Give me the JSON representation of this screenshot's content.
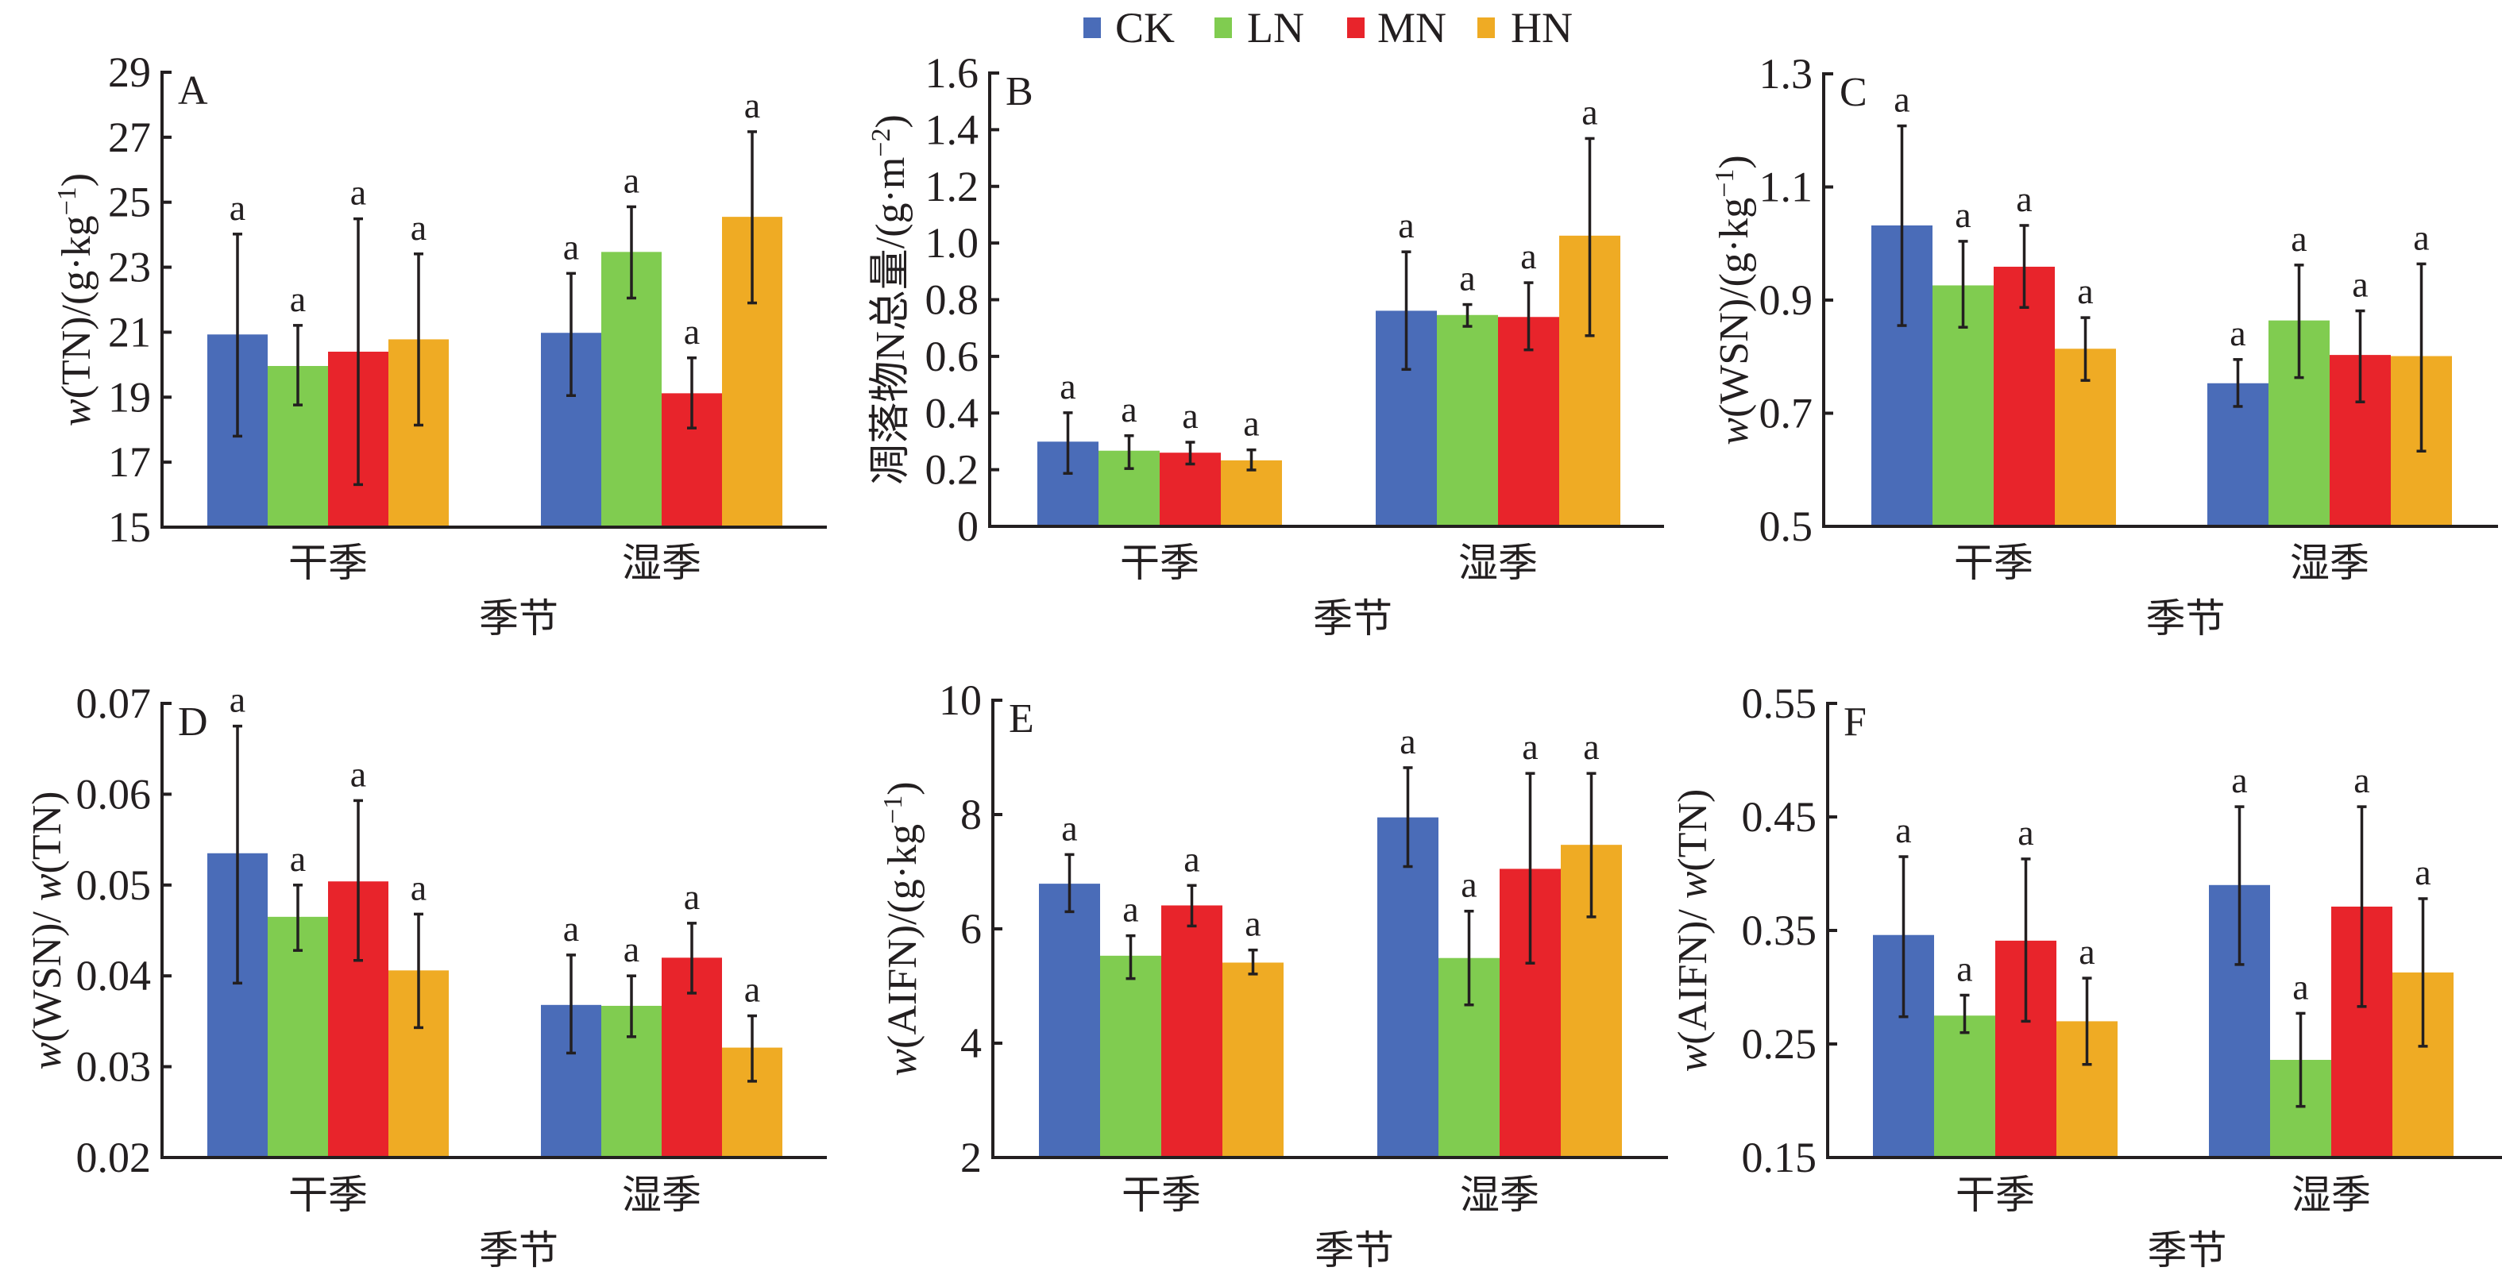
{
  "legend": [
    {
      "key": "CK",
      "label": "CK",
      "color": "#4a6cb8"
    },
    {
      "key": "LN",
      "label": "LN",
      "color": "#80cc50"
    },
    {
      "key": "MN",
      "label": "MN",
      "color": "#e8242b"
    },
    {
      "key": "HN",
      "label": "HN",
      "color": "#efab24"
    }
  ],
  "chart_data": [
    {
      "type": "bar",
      "panel": "A",
      "title": "",
      "ylabel": {
        "italic": "w",
        "text": "(TN)/(g·kg",
        "sup": "−1",
        "end": ")"
      },
      "xlabel": "季节",
      "categories": [
        "干季",
        "湿季"
      ],
      "ylim": [
        15,
        29
      ],
      "yticks": [
        "15",
        "17",
        "19",
        "21",
        "23",
        "25",
        "27",
        "29"
      ],
      "ytick_values": [
        15,
        17,
        19,
        21,
        23,
        25,
        27,
        29
      ],
      "series": [
        {
          "name": "CK",
          "values": [
            20.93,
            20.98
          ],
          "err_upper": [
            24.02,
            22.81
          ],
          "err_lower": [
            17.8,
            19.05
          ],
          "letters": [
            "a",
            "a"
          ]
        },
        {
          "name": "LN",
          "values": [
            19.96,
            23.47
          ],
          "err_upper": [
            21.21,
            24.86
          ],
          "err_lower": [
            18.76,
            22.05
          ],
          "letters": [
            "a",
            "a"
          ]
        },
        {
          "name": "MN",
          "values": [
            20.4,
            19.12
          ],
          "err_upper": [
            24.49,
            20.21
          ],
          "err_lower": [
            16.31,
            18.05
          ],
          "letters": [
            "a",
            "a"
          ]
        },
        {
          "name": "HN",
          "values": [
            20.78,
            24.55
          ],
          "err_upper": [
            23.41,
            27.17
          ],
          "err_lower": [
            18.14,
            21.9
          ],
          "letters": [
            "a",
            "a"
          ]
        }
      ]
    },
    {
      "type": "bar",
      "panel": "B",
      "title": "",
      "ylabel": {
        "italic": "",
        "text": "凋落物N总量/(g·m",
        "sup": "−2",
        "end": ")"
      },
      "xlabel": "季节",
      "categories": [
        "干季",
        "湿季"
      ],
      "ylim": [
        0,
        1.6
      ],
      "yticks": [
        "0",
        "0.2",
        "0.4",
        "0.6",
        "0.8",
        "1.0",
        "1.2",
        "1.4",
        "1.6"
      ],
      "ytick_values": [
        0,
        0.2,
        0.4,
        0.6,
        0.8,
        1.0,
        1.2,
        1.4,
        1.6
      ],
      "series": [
        {
          "name": "CK",
          "values": [
            0.299,
            0.761
          ],
          "err_upper": [
            0.401,
            0.969
          ],
          "err_lower": [
            0.187,
            0.554
          ],
          "letters": [
            "a",
            "a"
          ]
        },
        {
          "name": "LN",
          "values": [
            0.267,
            0.746
          ],
          "err_upper": [
            0.32,
            0.783
          ],
          "err_lower": [
            0.204,
            0.706
          ],
          "letters": [
            "a",
            "a"
          ]
        },
        {
          "name": "MN",
          "values": [
            0.26,
            0.739
          ],
          "err_upper": [
            0.297,
            0.86
          ],
          "err_lower": [
            0.22,
            0.623
          ],
          "letters": [
            "a",
            "a"
          ]
        },
        {
          "name": "HN",
          "values": [
            0.233,
            1.026
          ],
          "err_upper": [
            0.27,
            1.369
          ],
          "err_lower": [
            0.199,
            0.673
          ],
          "letters": [
            "a",
            "a"
          ]
        }
      ]
    },
    {
      "type": "bar",
      "panel": "C",
      "title": "",
      "ylabel": {
        "italic": "w",
        "text": "(WSN)/(g·kg",
        "sup": "−1",
        "end": ")"
      },
      "xlabel": "季节",
      "categories": [
        "干季",
        "湿季"
      ],
      "ylim": [
        0.5,
        1.3
      ],
      "yticks": [
        "0.5",
        "0.7",
        "0.9",
        "1.1",
        "1.3"
      ],
      "ytick_values": [
        0.5,
        0.7,
        0.9,
        1.1,
        1.3
      ],
      "series": [
        {
          "name": "CK",
          "values": [
            1.032,
            0.753
          ],
          "err_upper": [
            1.208,
            0.795
          ],
          "err_lower": [
            0.855,
            0.712
          ],
          "letters": [
            "a",
            "a"
          ]
        },
        {
          "name": "LN",
          "values": [
            0.926,
            0.864
          ],
          "err_upper": [
            1.004,
            0.962
          ],
          "err_lower": [
            0.852,
            0.763
          ],
          "letters": [
            "a",
            "a"
          ]
        },
        {
          "name": "MN",
          "values": [
            0.959,
            0.803
          ],
          "err_upper": [
            1.032,
            0.881
          ],
          "err_lower": [
            0.887,
            0.72
          ],
          "letters": [
            "a",
            "a"
          ]
        },
        {
          "name": "HN",
          "values": [
            0.814,
            0.801
          ],
          "err_upper": [
            0.869,
            0.964
          ],
          "err_lower": [
            0.758,
            0.633
          ],
          "letters": [
            "a",
            "a"
          ]
        }
      ]
    },
    {
      "type": "bar",
      "panel": "D",
      "title": "",
      "ylabel": {
        "italic": "w",
        "text": "(WSN)/ ",
        "italic2": "w",
        "text2": "(TN)",
        "sup": "",
        "end": ""
      },
      "xlabel": "季节",
      "categories": [
        "干季",
        "湿季"
      ],
      "ylim": [
        0.02,
        0.07
      ],
      "yticks": [
        "0.02",
        "0.03",
        "0.04",
        "0.05",
        "0.06",
        "0.07"
      ],
      "ytick_values": [
        0.02,
        0.03,
        0.04,
        0.05,
        0.06,
        0.07
      ],
      "series": [
        {
          "name": "CK",
          "values": [
            0.0535,
            0.0368
          ],
          "err_upper": [
            0.0675,
            0.0423
          ],
          "err_lower": [
            0.0392,
            0.0315
          ],
          "letters": [
            "a",
            "a"
          ]
        },
        {
          "name": "LN",
          "values": [
            0.0465,
            0.0367
          ],
          "err_upper": [
            0.05,
            0.04
          ],
          "err_lower": [
            0.0428,
            0.0333
          ],
          "letters": [
            "a",
            "a"
          ]
        },
        {
          "name": "MN",
          "values": [
            0.0504,
            0.042
          ],
          "err_upper": [
            0.0593,
            0.0458
          ],
          "err_lower": [
            0.0417,
            0.0381
          ],
          "letters": [
            "a",
            "a"
          ]
        },
        {
          "name": "HN",
          "values": [
            0.0406,
            0.0321
          ],
          "err_upper": [
            0.0468,
            0.0356
          ],
          "err_lower": [
            0.0343,
            0.0284
          ],
          "letters": [
            "a",
            "a"
          ]
        }
      ]
    },
    {
      "type": "bar",
      "panel": "E",
      "title": "",
      "ylabel": {
        "italic": "w",
        "text": "(AIFN)/(g·kg",
        "sup": "−1",
        "end": ")"
      },
      "xlabel": "季节",
      "categories": [
        "干季",
        "湿季"
      ],
      "ylim": [
        2,
        10
      ],
      "yticks": [
        "2",
        "4",
        "6",
        "8",
        "10"
      ],
      "ytick_values": [
        2,
        4,
        6,
        8,
        10
      ],
      "series": [
        {
          "name": "CK",
          "values": [
            6.79,
            7.95
          ],
          "err_upper": [
            7.3,
            8.82
          ],
          "err_lower": [
            6.3,
            7.09
          ],
          "letters": [
            "a",
            "a"
          ]
        },
        {
          "name": "LN",
          "values": [
            5.53,
            5.49
          ],
          "err_upper": [
            5.88,
            6.31
          ],
          "err_lower": [
            5.13,
            4.67
          ],
          "letters": [
            "a",
            "a"
          ]
        },
        {
          "name": "MN",
          "values": [
            6.41,
            7.05
          ],
          "err_upper": [
            6.76,
            8.72
          ],
          "err_lower": [
            6.05,
            5.4
          ],
          "letters": [
            "a",
            "a"
          ]
        },
        {
          "name": "HN",
          "values": [
            5.41,
            7.47
          ],
          "err_upper": [
            5.63,
            8.72
          ],
          "err_lower": [
            5.21,
            6.21
          ],
          "letters": [
            "a",
            "a"
          ]
        }
      ]
    },
    {
      "type": "bar",
      "panel": "F",
      "title": "",
      "ylabel": {
        "italic": "w",
        "text": "(AIFN)/ ",
        "italic2": "w",
        "text2": "(TN)",
        "sup": "",
        "end": ""
      },
      "xlabel": "季节",
      "categories": [
        "干季",
        "湿季"
      ],
      "ylim": [
        0.15,
        0.55
      ],
      "yticks": [
        "0.15",
        "0.25",
        "0.35",
        "0.45",
        "0.55"
      ],
      "ytick_values": [
        0.15,
        0.25,
        0.35,
        0.45,
        0.55
      ],
      "series": [
        {
          "name": "CK",
          "values": [
            0.346,
            0.39
          ],
          "err_upper": [
            0.415,
            0.459
          ],
          "err_lower": [
            0.274,
            0.32
          ],
          "letters": [
            "a",
            "a"
          ]
        },
        {
          "name": "LN",
          "values": [
            0.275,
            0.236
          ],
          "err_upper": [
            0.293,
            0.277
          ],
          "err_lower": [
            0.26,
            0.195
          ],
          "letters": [
            "a",
            "a"
          ]
        },
        {
          "name": "MN",
          "values": [
            0.341,
            0.371
          ],
          "err_upper": [
            0.413,
            0.459
          ],
          "err_lower": [
            0.27,
            0.283
          ],
          "letters": [
            "a",
            "a"
          ]
        },
        {
          "name": "HN",
          "values": [
            0.27,
            0.313
          ],
          "err_upper": [
            0.308,
            0.378
          ],
          "err_lower": [
            0.232,
            0.248
          ],
          "letters": [
            "a",
            "a"
          ]
        }
      ]
    }
  ]
}
